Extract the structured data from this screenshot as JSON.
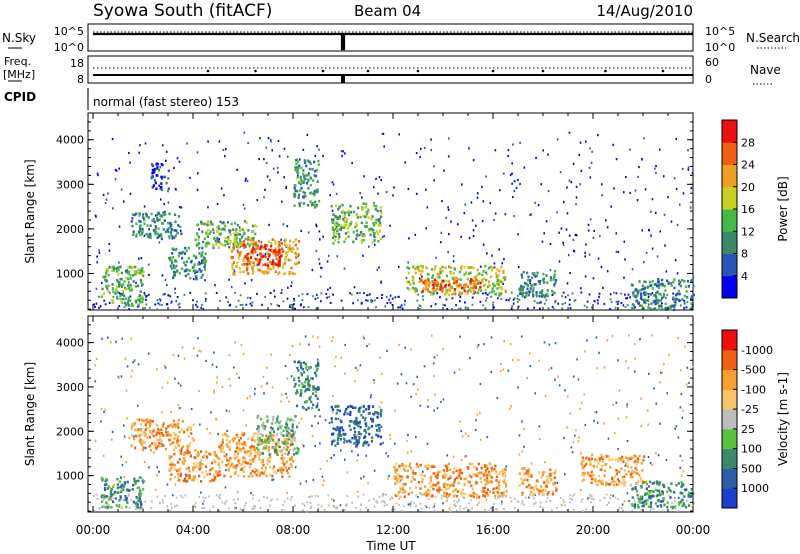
{
  "header": {
    "station": "Syowa South (fitACF)",
    "beam": "Beam 04",
    "date": "14/Aug/2010"
  },
  "strip_labels": {
    "nsky": "N.Sky",
    "nsky_ticks": [
      "10^5",
      "10^0"
    ],
    "nsearch": "N.Search",
    "nsearch_ticks": [
      "10^5",
      "10^0"
    ],
    "freq_line1": "Freq.",
    "freq_line2": "[MHz]",
    "freq_ticks": [
      "18",
      "8"
    ],
    "nave": "Nave",
    "nave_ticks": [
      "60",
      "0"
    ],
    "cpid": "CPID",
    "mode_text": "normal (fast stereo) 153"
  },
  "colors": {
    "power_scale": [
      "#0000ee",
      "#2a55b8",
      "#3a8a6a",
      "#45b845",
      "#c8d020",
      "#f0a020",
      "#f06010",
      "#ee1010"
    ],
    "velocity_scale": [
      "#1a3ecf",
      "#2a5fa8",
      "#3a8a6a",
      "#5ac040",
      "#bdbdbd",
      "#f7c46a",
      "#f5a030",
      "#f06010",
      "#ee1010"
    ]
  },
  "chart_data": [
    {
      "type": "heatmap",
      "name": "power",
      "ylabel": "Slant Range [km]",
      "ylim": [
        180,
        4600
      ],
      "yticks": [
        1000,
        2000,
        3000,
        4000
      ],
      "xlim": [
        0,
        24
      ],
      "xticks": [
        "00:00",
        "04:00",
        "08:00",
        "12:00",
        "16:00",
        "20:00",
        "00:00"
      ],
      "colorbar_label": "Power [dB]",
      "colorbar_ticks": [
        "4",
        "8",
        "12",
        "16",
        "20",
        "24",
        "28"
      ],
      "regions": [
        {
          "t0": 0.3,
          "t1": 2.0,
          "r0": 300,
          "r1": 1200,
          "level": 3
        },
        {
          "t0": 1.5,
          "t1": 3.5,
          "r0": 1800,
          "r1": 2400,
          "level": 2
        },
        {
          "t0": 3.0,
          "t1": 4.5,
          "r0": 900,
          "r1": 1600,
          "level": 2
        },
        {
          "t0": 4.0,
          "t1": 6.5,
          "r0": 1600,
          "r1": 2200,
          "level": 3
        },
        {
          "t0": 5.5,
          "t1": 8.2,
          "r0": 1000,
          "r1": 1800,
          "level": 5
        },
        {
          "t0": 6.0,
          "t1": 7.5,
          "r0": 1200,
          "r1": 1700,
          "level": 7
        },
        {
          "t0": 8.0,
          "t1": 9.0,
          "r0": 2500,
          "r1": 3600,
          "level": 2
        },
        {
          "t0": 9.5,
          "t1": 11.5,
          "r0": 1700,
          "r1": 2600,
          "level": 3
        },
        {
          "t0": 2.3,
          "t1": 3.0,
          "r0": 2900,
          "r1": 3500,
          "level": 1
        },
        {
          "t0": 12.5,
          "t1": 16.5,
          "r0": 550,
          "r1": 1200,
          "level": 4
        },
        {
          "t0": 13.0,
          "t1": 15.5,
          "r0": 600,
          "r1": 900,
          "level": 6
        },
        {
          "t0": 17.0,
          "t1": 18.5,
          "r0": 500,
          "r1": 1100,
          "level": 2
        },
        {
          "t0": 21.5,
          "t1": 24.0,
          "r0": 200,
          "r1": 900,
          "level": 2
        }
      ]
    },
    {
      "type": "heatmap",
      "name": "velocity",
      "ylabel": "Slant Range [km]",
      "ylim": [
        180,
        4600
      ],
      "yticks": [
        1000,
        2000,
        3000,
        4000
      ],
      "xlim": [
        0,
        24
      ],
      "xticks": [
        "00:00",
        "04:00",
        "08:00",
        "12:00",
        "16:00",
        "20:00",
        "00:00"
      ],
      "xlabel": "Time UT",
      "colorbar_label": "Velocity [m s-1]",
      "colorbar_ticks": [
        "1000",
        "500",
        "100",
        "25",
        "-25",
        "-100",
        "-500",
        "-1000"
      ],
      "regions": [
        {
          "t0": 0.3,
          "t1": 2.0,
          "r0": 300,
          "r1": 1000,
          "level": 2
        },
        {
          "t0": 1.5,
          "t1": 4.0,
          "r0": 1600,
          "r1": 2300,
          "level": 6
        },
        {
          "t0": 3.0,
          "t1": 5.0,
          "r0": 900,
          "r1": 1600,
          "level": 6
        },
        {
          "t0": 5.0,
          "t1": 8.0,
          "r0": 1000,
          "r1": 2000,
          "level": 6
        },
        {
          "t0": 6.5,
          "t1": 8.2,
          "r0": 1500,
          "r1": 2400,
          "level": 3
        },
        {
          "t0": 8.0,
          "t1": 9.0,
          "r0": 2500,
          "r1": 3600,
          "level": 2
        },
        {
          "t0": 9.5,
          "t1": 11.5,
          "r0": 1700,
          "r1": 2600,
          "level": 1
        },
        {
          "t0": 12.0,
          "t1": 16.5,
          "r0": 550,
          "r1": 1300,
          "level": 6
        },
        {
          "t0": 17.0,
          "t1": 18.5,
          "r0": 600,
          "r1": 1200,
          "level": 6
        },
        {
          "t0": 19.5,
          "t1": 22.0,
          "r0": 800,
          "r1": 1500,
          "level": 6
        },
        {
          "t0": 21.5,
          "t1": 24.0,
          "r0": 300,
          "r1": 900,
          "level": 2
        }
      ]
    }
  ]
}
